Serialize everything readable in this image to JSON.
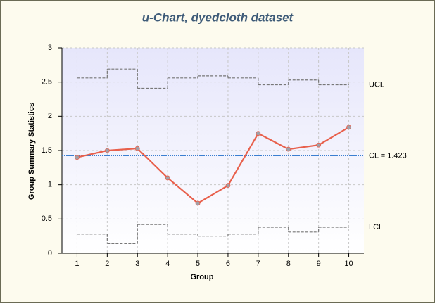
{
  "chart_data": {
    "type": "control",
    "title": "u-Chart, dyedcloth dataset",
    "x_label": "Group",
    "y_label": "Group Summary Statistics",
    "x": [
      1,
      2,
      3,
      4,
      5,
      6,
      7,
      8,
      9,
      10
    ],
    "xlim": [
      0.5,
      10.5
    ],
    "xticks": [
      1,
      2,
      3,
      4,
      5,
      6,
      7,
      8,
      9,
      10
    ],
    "ylim": [
      0,
      3
    ],
    "yticks": [
      0,
      0.5,
      1,
      1.5,
      2,
      2.5,
      3
    ],
    "grid": true,
    "series": [
      {
        "name": "statistic",
        "color": "#e8604c",
        "values": [
          1.4,
          1.5,
          1.53,
          1.1,
          0.73,
          0.99,
          1.75,
          1.52,
          1.58,
          1.84
        ]
      }
    ],
    "ucl": {
      "label": "UCL",
      "color": "#777777",
      "values": [
        2.56,
        2.69,
        2.41,
        2.56,
        2.59,
        2.56,
        2.46,
        2.53,
        2.46,
        2.46
      ]
    },
    "lcl": {
      "label": "LCL",
      "color": "#777777",
      "values": [
        0.28,
        0.14,
        0.42,
        0.28,
        0.25,
        0.28,
        0.38,
        0.31,
        0.38,
        0.38
      ]
    },
    "center_line": {
      "value": 1.423,
      "label": "CL = 1.423",
      "color": "#3b7fd1"
    }
  }
}
